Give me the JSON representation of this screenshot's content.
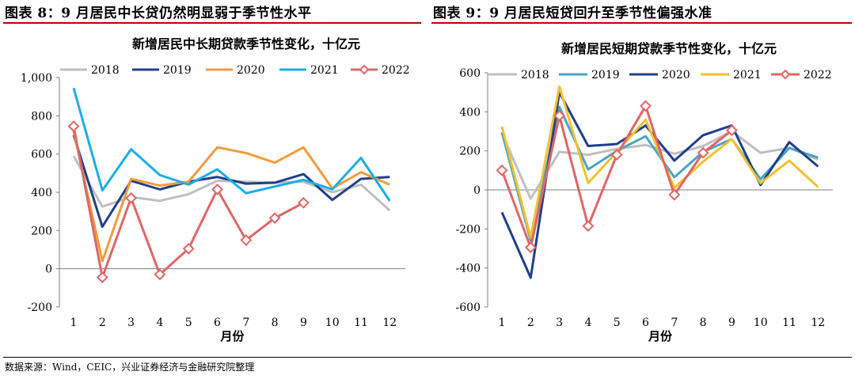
{
  "figures": [
    {
      "label": "图表 8：9 月居民中长贷仍然明显弱于季节性水平"
    },
    {
      "label": "图表 9：9 月居民短贷回升至季节性偏强水准"
    }
  ],
  "source": "数据来源：Wind，CEIC，兴业证券经济与金融研究院整理",
  "chart_data": [
    {
      "type": "line",
      "title": "新增居民中长期贷款季节性变化，十亿元",
      "xlabel": "月份",
      "ylabel": "",
      "categories": [
        "1",
        "2",
        "3",
        "4",
        "5",
        "6",
        "7",
        "8",
        "9",
        "10",
        "11",
        "12"
      ],
      "yticks": [
        "-200",
        "0",
        "200",
        "400",
        "600",
        "800",
        "1,000"
      ],
      "ylim": [
        -200,
        1000
      ],
      "grid": false,
      "legend_position": "top",
      "series": [
        {
          "name": "2018",
          "color": "#bfbfbf",
          "marker": "none",
          "values": [
            590,
            325,
            375,
            355,
            390,
            460,
            455,
            450,
            455,
            400,
            440,
            305
          ]
        },
        {
          "name": "2019",
          "color": "#1f3f8a",
          "marker": "none",
          "values": [
            700,
            220,
            460,
            415,
            455,
            480,
            445,
            450,
            495,
            360,
            470,
            480
          ]
        },
        {
          "name": "2020",
          "color": "#f39a3c",
          "marker": "none",
          "values": [
            720,
            40,
            470,
            435,
            455,
            635,
            605,
            555,
            635,
            420,
            505,
            440
          ]
        },
        {
          "name": "2021",
          "color": "#1aaee6",
          "marker": "none",
          "values": [
            945,
            410,
            625,
            490,
            440,
            520,
            395,
            430,
            465,
            415,
            580,
            355
          ]
        },
        {
          "name": "2022",
          "color": "#e06666",
          "marker": "diamond",
          "values": [
            745,
            -45,
            370,
            -30,
            105,
            415,
            150,
            265,
            345,
            null,
            null,
            null
          ]
        }
      ]
    },
    {
      "type": "line",
      "title": "新增居民短期贷款季节性变化，十亿元",
      "xlabel": "月份",
      "ylabel": "",
      "categories": [
        "1",
        "2",
        "3",
        "4",
        "5",
        "6",
        "7",
        "8",
        "9",
        "10",
        "11",
        "12"
      ],
      "yticks": [
        "-600",
        "-400",
        "-200",
        "0",
        "200",
        "400",
        "600"
      ],
      "ylim": [
        -600,
        600
      ],
      "grid": false,
      "legend_position": "top",
      "series": [
        {
          "name": "2018",
          "color": "#bfbfbf",
          "marker": "none",
          "values": [
            290,
            -45,
            195,
            180,
            210,
            230,
            185,
            225,
            300,
            190,
            215,
            155
          ]
        },
        {
          "name": "2019",
          "color": "#4aa3c8",
          "marker": "none",
          "values": [
            295,
            -260,
            425,
            105,
            200,
            275,
            65,
            195,
            260,
            55,
            215,
            165
          ]
        },
        {
          "name": "2020",
          "color": "#1f3f8a",
          "marker": "none",
          "values": [
            -115,
            -450,
            500,
            225,
            235,
            330,
            150,
            280,
            330,
            25,
            245,
            120
          ]
        },
        {
          "name": "2021",
          "color": "#f2c12e",
          "marker": "none",
          "values": [
            325,
            -245,
            530,
            35,
            195,
            360,
            10,
            145,
            260,
            35,
            150,
            15
          ]
        },
        {
          "name": "2022",
          "color": "#e06666",
          "marker": "diamond",
          "values": [
            100,
            -295,
            380,
            -185,
            180,
            430,
            -25,
            190,
            305,
            null,
            null,
            null
          ]
        }
      ]
    }
  ]
}
